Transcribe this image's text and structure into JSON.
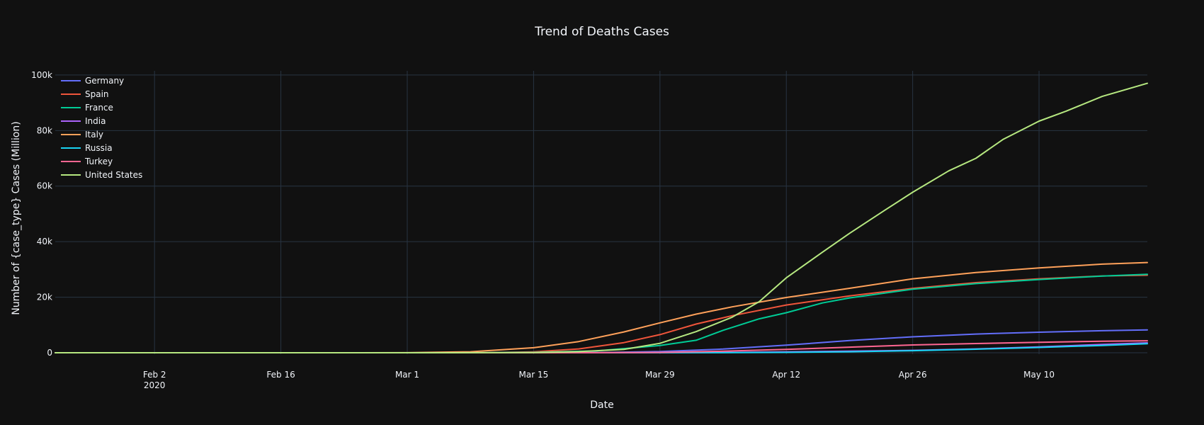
{
  "chart_data": {
    "type": "line",
    "title": "Trend of Deaths Cases",
    "xlabel": "Date",
    "ylabel": "Number of {case_type} Cases (Million)",
    "x_range": [
      "2020-01-22",
      "2020-05-22"
    ],
    "ylim": [
      -500,
      101500
    ],
    "x_ticks": [
      {
        "date": "2020-02-02",
        "label": "Feb 2",
        "sublabel": "2020"
      },
      {
        "date": "2020-02-16",
        "label": "Feb 16",
        "sublabel": ""
      },
      {
        "date": "2020-03-01",
        "label": "Mar 1",
        "sublabel": ""
      },
      {
        "date": "2020-03-15",
        "label": "Mar 15",
        "sublabel": ""
      },
      {
        "date": "2020-03-29",
        "label": "Mar 29",
        "sublabel": ""
      },
      {
        "date": "2020-04-12",
        "label": "Apr 12",
        "sublabel": ""
      },
      {
        "date": "2020-04-26",
        "label": "Apr 26",
        "sublabel": ""
      },
      {
        "date": "2020-05-10",
        "label": "May 10",
        "sublabel": ""
      }
    ],
    "y_ticks": [
      {
        "value": 0,
        "label": "0"
      },
      {
        "value": 20000,
        "label": "20k"
      },
      {
        "value": 40000,
        "label": "40k"
      },
      {
        "value": 60000,
        "label": "60k"
      },
      {
        "value": 80000,
        "label": "80k"
      },
      {
        "value": 100000,
        "label": "100k"
      }
    ],
    "grid": true,
    "legend_position": "top-left",
    "series": [
      {
        "name": "Germany",
        "color": "#636efa",
        "x": [
          "2020-01-22",
          "2020-03-08",
          "2020-03-15",
          "2020-03-22",
          "2020-03-29",
          "2020-04-05",
          "2020-04-12",
          "2020-04-19",
          "2020-04-26",
          "2020-05-03",
          "2020-05-10",
          "2020-05-17",
          "2020-05-22"
        ],
        "y": [
          0,
          0,
          12,
          94,
          455,
          1342,
          2736,
          4404,
          5760,
          6736,
          7395,
          7935,
          8247
        ]
      },
      {
        "name": "Spain",
        "color": "#ef553b",
        "x": [
          "2020-01-22",
          "2020-03-03",
          "2020-03-10",
          "2020-03-15",
          "2020-03-20",
          "2020-03-25",
          "2020-03-29",
          "2020-04-02",
          "2020-04-06",
          "2020-04-12",
          "2020-04-19",
          "2020-04-26",
          "2020-05-03",
          "2020-05-10",
          "2020-05-17",
          "2020-05-22"
        ],
        "y": [
          0,
          1,
          35,
          342,
          1381,
          3647,
          6528,
          10348,
          13341,
          17209,
          20453,
          23190,
          25264,
          26621,
          27650,
          27940
        ]
      },
      {
        "name": "France",
        "color": "#00cc96",
        "x": [
          "2020-01-22",
          "2020-03-08",
          "2020-03-15",
          "2020-03-22",
          "2020-03-29",
          "2020-04-02",
          "2020-04-05",
          "2020-04-09",
          "2020-04-12",
          "2020-04-16",
          "2020-04-19",
          "2020-04-26",
          "2020-05-03",
          "2020-05-10",
          "2020-05-17",
          "2020-05-22"
        ],
        "y": [
          0,
          19,
          127,
          676,
          2611,
          4503,
          8093,
          12228,
          14412,
          17941,
          19744,
          22890,
          24900,
          26380,
          27630,
          28250
        ]
      },
      {
        "name": "India",
        "color": "#ab63fa",
        "x": [
          "2020-01-22",
          "2020-03-22",
          "2020-03-29",
          "2020-04-05",
          "2020-04-12",
          "2020-04-19",
          "2020-04-26",
          "2020-05-03",
          "2020-05-10",
          "2020-05-17",
          "2020-05-22"
        ],
        "y": [
          0,
          7,
          27,
          109,
          331,
          559,
          886,
          1389,
          2109,
          3029,
          3583
        ]
      },
      {
        "name": "Italy",
        "color": "#ffa15a",
        "x": [
          "2020-01-22",
          "2020-02-23",
          "2020-03-01",
          "2020-03-08",
          "2020-03-15",
          "2020-03-20",
          "2020-03-25",
          "2020-03-29",
          "2020-04-02",
          "2020-04-06",
          "2020-04-12",
          "2020-04-19",
          "2020-04-26",
          "2020-05-03",
          "2020-05-10",
          "2020-05-17",
          "2020-05-22"
        ],
        "y": [
          0,
          3,
          34,
          366,
          1809,
          4032,
          7503,
          10779,
          13915,
          16523,
          19899,
          23227,
          26644,
          28884,
          30560,
          31908,
          32486
        ]
      },
      {
        "name": "Russia",
        "color": "#19d3f3",
        "x": [
          "2020-01-22",
          "2020-04-05",
          "2020-04-12",
          "2020-04-19",
          "2020-04-26",
          "2020-05-03",
          "2020-05-10",
          "2020-05-17",
          "2020-05-22"
        ],
        "y": [
          0,
          43,
          148,
          361,
          747,
          1280,
          1915,
          2631,
          3249
        ]
      },
      {
        "name": "Turkey",
        "color": "#ff6692",
        "x": [
          "2020-01-22",
          "2020-03-17",
          "2020-03-22",
          "2020-03-29",
          "2020-04-05",
          "2020-04-12",
          "2020-04-19",
          "2020-04-26",
          "2020-05-03",
          "2020-05-10",
          "2020-05-17",
          "2020-05-22"
        ],
        "y": [
          0,
          1,
          30,
          131,
          574,
          1198,
          2017,
          2805,
          3336,
          3786,
          4171,
          4308
        ]
      },
      {
        "name": "United States",
        "color": "#b6e880",
        "x": [
          "2020-01-22",
          "2020-03-01",
          "2020-03-10",
          "2020-03-15",
          "2020-03-20",
          "2020-03-25",
          "2020-03-29",
          "2020-04-02",
          "2020-04-06",
          "2020-04-09",
          "2020-04-12",
          "2020-04-16",
          "2020-04-19",
          "2020-04-23",
          "2020-04-26",
          "2020-04-30",
          "2020-05-03",
          "2020-05-06",
          "2020-05-10",
          "2020-05-13",
          "2020-05-17",
          "2020-05-22"
        ],
        "y": [
          0,
          1,
          28,
          63,
          427,
          1209,
          3400,
          7600,
          12800,
          18400,
          27000,
          36200,
          43000,
          51500,
          57800,
          65500,
          70000,
          76800,
          83400,
          87000,
          92300,
          97000
        ]
      }
    ]
  }
}
